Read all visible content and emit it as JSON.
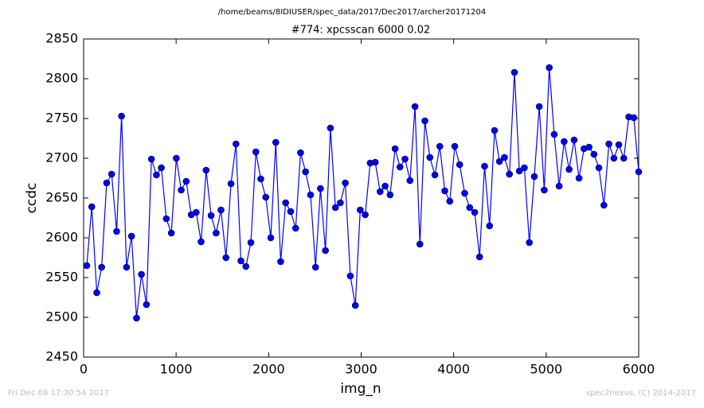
{
  "chart_data": {
    "type": "line",
    "suptitle": "/home/beams/8IDIUSER/spec_data/2017/Dec2017/archer20171204",
    "title": "#774: xpcsscan 6000 0.02",
    "xlabel": "img_n",
    "ylabel": "ccdc",
    "footer_left": "Fri Dec 08 17:30:54 2017",
    "footer_right": "spec2nexus, (C) 2014-2017",
    "xlim": [
      0,
      6000
    ],
    "ylim": [
      2450,
      2850
    ],
    "xticks": [
      0,
      1000,
      2000,
      3000,
      4000,
      5000,
      6000
    ],
    "yticks": [
      2450,
      2500,
      2550,
      2600,
      2650,
      2700,
      2750,
      2800,
      2850
    ],
    "x": [
      34,
      88,
      142,
      195,
      249,
      303,
      357,
      410,
      464,
      518,
      572,
      625,
      679,
      733,
      787,
      840,
      894,
      948,
      1002,
      1055,
      1109,
      1163,
      1217,
      1270,
      1324,
      1378,
      1432,
      1485,
      1539,
      1593,
      1647,
      1700,
      1754,
      1808,
      1862,
      1915,
      1969,
      2023,
      2077,
      2130,
      2184,
      2238,
      2292,
      2345,
      2399,
      2453,
      2507,
      2560,
      2614,
      2668,
      2722,
      2775,
      2829,
      2883,
      2937,
      2990,
      3044,
      3098,
      3152,
      3205,
      3259,
      3313,
      3367,
      3420,
      3474,
      3528,
      3582,
      3635,
      3689,
      3743,
      3797,
      3850,
      3904,
      3958,
      4012,
      4065,
      4119,
      4173,
      4227,
      4280,
      4334,
      4388,
      4442,
      4495,
      4549,
      4603,
      4657,
      4710,
      4764,
      4818,
      4872,
      4925,
      4979,
      5033,
      5087,
      5140,
      5194,
      5248,
      5302,
      5355,
      5409,
      5463,
      5517,
      5570,
      5624,
      5678,
      5732,
      5785,
      5839,
      5893,
      5947,
      6000
    ],
    "series": [
      {
        "color": "#0000ff",
        "values": [
          2565,
          2639,
          2531,
          2563,
          2669,
          2680,
          2608,
          2753,
          2563,
          2602,
          2499,
          2554,
          2516,
          2699,
          2679,
          2688,
          2624,
          2606,
          2700,
          2660,
          2671,
          2629,
          2632,
          2595,
          2685,
          2628,
          2606,
          2635,
          2575,
          2668,
          2718,
          2571,
          2564,
          2594,
          2708,
          2674,
          2651,
          2600,
          2720,
          2570,
          2644,
          2633,
          2612,
          2707,
          2683,
          2654,
          2563,
          2662,
          2584,
          2738,
          2638,
          2644,
          2669,
          2552,
          2515,
          2635,
          2629,
          2694,
          2695,
          2658,
          2665,
          2654,
          2712,
          2689,
          2699,
          2672,
          2765,
          2592,
          2747,
          2701,
          2679,
          2715,
          2659,
          2646,
          2715,
          2692,
          2656,
          2638,
          2632,
          2576,
          2690,
          2615,
          2735,
          2696,
          2701,
          2680,
          2808,
          2684,
          2688,
          2594,
          2677,
          2765,
          2660,
          2814,
          2730,
          2665,
          2721,
          2686,
          2723,
          2675,
          2712,
          2714,
          2705,
          2688,
          2641,
          2718,
          2700,
          2717,
          2700,
          2752,
          2751,
          2683
        ]
      }
    ]
  }
}
